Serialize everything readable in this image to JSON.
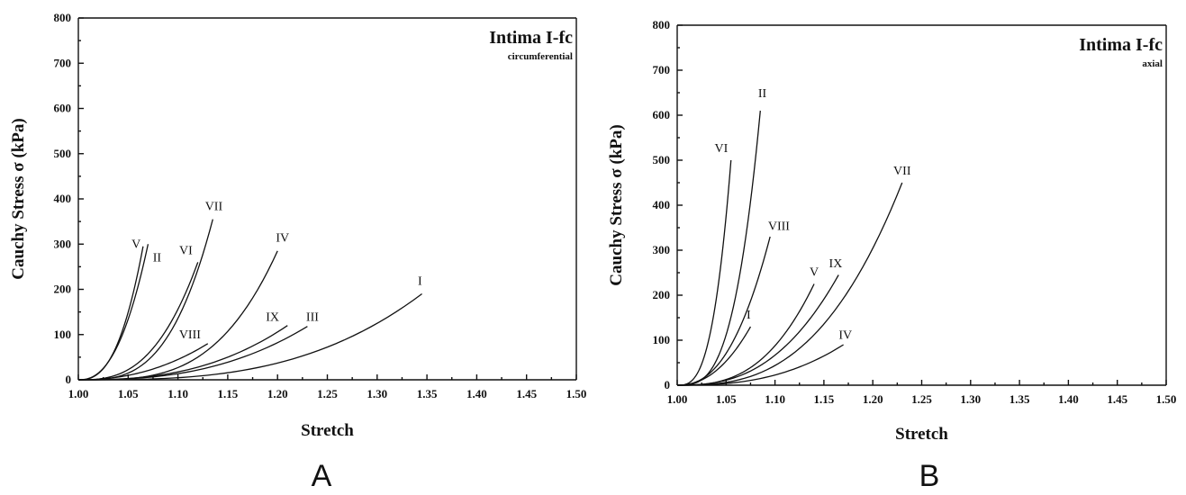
{
  "chart_data": [
    {
      "id": "A",
      "type": "line",
      "panel_letter": "A",
      "title": "Intima I-fc",
      "subtitle": "circumferential",
      "xlabel": "Stretch",
      "ylabel": "Cauchy Stress σ (kPa)",
      "xlim": [
        1.0,
        1.5
      ],
      "ylim": [
        0,
        800
      ],
      "xticks": [
        "1.00",
        "1.05",
        "1.10",
        "1.15",
        "1.20",
        "1.25",
        "1.30",
        "1.35",
        "1.40",
        "1.45",
        "1.50"
      ],
      "yticks": [
        "0",
        "100",
        "200",
        "300",
        "400",
        "500",
        "600",
        "700",
        "800"
      ],
      "series": [
        {
          "name": "V",
          "x_end": 1.065,
          "y_end": 295,
          "power": 2.6,
          "label_x": 1.058,
          "label_y": 292
        },
        {
          "name": "II",
          "x_end": 1.07,
          "y_end": 300,
          "power": 2.4,
          "label_x": 1.079,
          "label_y": 262
        },
        {
          "name": "VI",
          "x_end": 1.12,
          "y_end": 260,
          "power": 2.8,
          "label_x": 1.108,
          "label_y": 278
        },
        {
          "name": "VII",
          "x_end": 1.135,
          "y_end": 355,
          "power": 3.2,
          "label_x": 1.136,
          "label_y": 375
        },
        {
          "name": "VIII",
          "x_end": 1.13,
          "y_end": 80,
          "power": 2.2,
          "label_x": 1.112,
          "label_y": 92
        },
        {
          "name": "IV",
          "x_end": 1.2,
          "y_end": 285,
          "power": 3.4,
          "label_x": 1.205,
          "label_y": 305
        },
        {
          "name": "IX",
          "x_end": 1.21,
          "y_end": 120,
          "power": 2.6,
          "label_x": 1.195,
          "label_y": 130
        },
        {
          "name": "III",
          "x_end": 1.23,
          "y_end": 118,
          "power": 2.6,
          "label_x": 1.235,
          "label_y": 130
        },
        {
          "name": "I",
          "x_end": 1.345,
          "y_end": 190,
          "power": 3.0,
          "label_x": 1.343,
          "label_y": 210
        }
      ]
    },
    {
      "id": "B",
      "type": "line",
      "panel_letter": "B",
      "title": "Intima I-fc",
      "subtitle": "axial",
      "xlabel": "Stretch",
      "ylabel": "Cauchy Stress σ (kPa)",
      "xlim": [
        1.0,
        1.5
      ],
      "ylim": [
        0,
        800
      ],
      "xticks": [
        "1.00",
        "1.05",
        "1.10",
        "1.15",
        "1.20",
        "1.25",
        "1.30",
        "1.35",
        "1.40",
        "1.45",
        "1.50"
      ],
      "yticks": [
        "0",
        "100",
        "200",
        "300",
        "400",
        "500",
        "600",
        "700",
        "800"
      ],
      "series": [
        {
          "name": "VI",
          "x_end": 1.055,
          "y_end": 500,
          "power": 3.0,
          "label_x": 1.045,
          "label_y": 518
        },
        {
          "name": "II",
          "x_end": 1.085,
          "y_end": 610,
          "power": 3.2,
          "label_x": 1.087,
          "label_y": 640
        },
        {
          "name": "VIII",
          "x_end": 1.095,
          "y_end": 330,
          "power": 2.4,
          "label_x": 1.104,
          "label_y": 345
        },
        {
          "name": "I",
          "x_end": 1.075,
          "y_end": 130,
          "power": 2.2,
          "label_x": 1.073,
          "label_y": 148
        },
        {
          "name": "V",
          "x_end": 1.14,
          "y_end": 225,
          "power": 2.8,
          "label_x": 1.14,
          "label_y": 243
        },
        {
          "name": "IX",
          "x_end": 1.165,
          "y_end": 245,
          "power": 2.6,
          "label_x": 1.162,
          "label_y": 262
        },
        {
          "name": "VII",
          "x_end": 1.23,
          "y_end": 450,
          "power": 2.8,
          "label_x": 1.23,
          "label_y": 468
        },
        {
          "name": "IV",
          "x_end": 1.17,
          "y_end": 90,
          "power": 2.6,
          "label_x": 1.172,
          "label_y": 103
        }
      ]
    }
  ]
}
